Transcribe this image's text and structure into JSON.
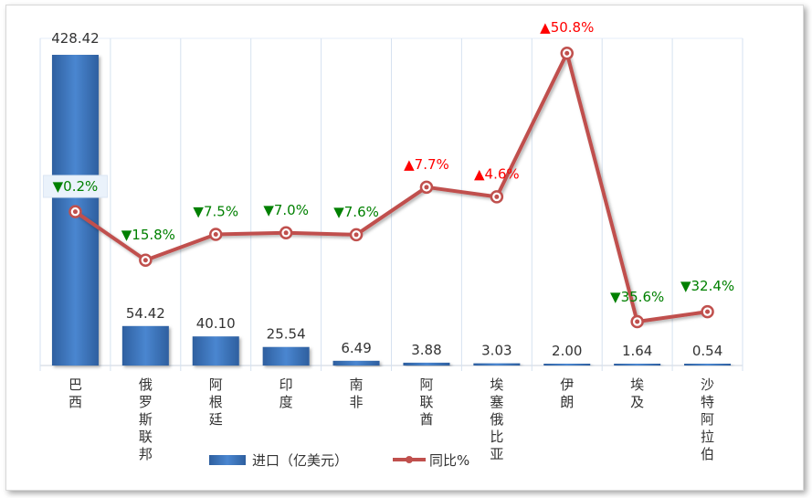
{
  "chart_data": {
    "type": "bar+line",
    "categories": [
      "巴西",
      "俄罗斯联邦",
      "阿根廷",
      "印度",
      "南非",
      "阿联酋",
      "埃塞俄比亚",
      "伊朗",
      "埃及",
      "沙特阿拉伯"
    ],
    "series": [
      {
        "name": "进口（亿美元）",
        "type": "bar",
        "values": [
          428.42,
          54.42,
          40.1,
          25.54,
          6.49,
          3.88,
          3.03,
          2.0,
          1.64,
          0.54
        ],
        "labels": [
          "428.42",
          "54.42",
          "40.10",
          "25.54",
          "6.49",
          "3.88",
          "3.03",
          "2.00",
          "1.64",
          "0.54"
        ]
      },
      {
        "name": "同比%",
        "type": "line",
        "values": [
          -0.2,
          -15.8,
          -7.5,
          -7.0,
          -7.6,
          7.7,
          4.6,
          50.8,
          -35.6,
          -32.4
        ],
        "labels": [
          "▼0.2%",
          "▼15.8%",
          "▼7.5%",
          "▼7.0%",
          "▼7.6%",
          "▲7.7%",
          "▲4.6%",
          "▲50.8%",
          "▼35.6%",
          "▼32.4%"
        ]
      }
    ],
    "legend_position": "bottom",
    "grid": "vertical",
    "colors": {
      "bar": "#3a6fb5",
      "line": "#c0504d",
      "up": "#ff0000",
      "down": "#008000"
    }
  }
}
